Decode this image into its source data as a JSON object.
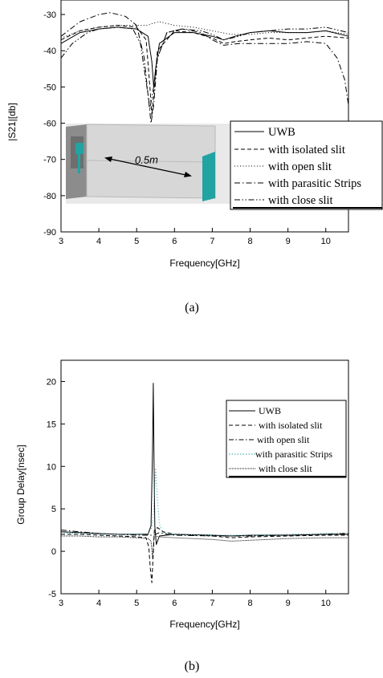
{
  "chart_data": [
    {
      "type": "line",
      "caption": "(a)",
      "xlabel": "Frequency[GHz]",
      "ylabel": "|S21|[db]",
      "xlim": [
        3,
        10.6
      ],
      "ylim": [
        -90,
        -26
      ],
      "xticks": [
        3,
        4,
        5,
        6,
        7,
        8,
        9,
        10
      ],
      "yticks": [
        -90,
        -80,
        -70,
        -60,
        -50,
        -40,
        -30
      ],
      "legend_position": "lower-right",
      "inset": {
        "label": "0.5m",
        "colors": {
          "box": "#d4d4d4",
          "antenna": "#22a3a3",
          "board": "#8c8c8c"
        }
      },
      "series": [
        {
          "name": "UWB",
          "style": "solid",
          "color": "#000000",
          "points": [
            [
              3.0,
              -38
            ],
            [
              3.5,
              -35
            ],
            [
              4.0,
              -34
            ],
            [
              4.5,
              -33.5
            ],
            [
              5.0,
              -34
            ],
            [
              5.3,
              -36
            ],
            [
              5.4,
              -43
            ],
            [
              5.45,
              -50
            ],
            [
              5.5,
              -45
            ],
            [
              5.6,
              -38
            ],
            [
              6.0,
              -35
            ],
            [
              6.5,
              -35
            ],
            [
              7.0,
              -36
            ],
            [
              7.3,
              -37
            ],
            [
              7.6,
              -36
            ],
            [
              8.0,
              -35
            ],
            [
              8.5,
              -34.5
            ],
            [
              9.0,
              -35
            ],
            [
              9.5,
              -35
            ],
            [
              10.0,
              -34.5
            ],
            [
              10.6,
              -36
            ]
          ]
        },
        {
          "name": "with isolated slit",
          "style": "dash",
          "color": "#000000",
          "points": [
            [
              3.0,
              -37
            ],
            [
              3.5,
              -34.5
            ],
            [
              4.0,
              -33.5
            ],
            [
              4.5,
              -33
            ],
            [
              5.0,
              -33.5
            ],
            [
              5.25,
              -37
            ],
            [
              5.35,
              -50
            ],
            [
              5.4,
              -58
            ],
            [
              5.45,
              -52
            ],
            [
              5.55,
              -40
            ],
            [
              6.0,
              -34.5
            ],
            [
              6.5,
              -35
            ],
            [
              7.0,
              -36.5
            ],
            [
              7.3,
              -38
            ],
            [
              7.6,
              -37.5
            ],
            [
              8.0,
              -37
            ],
            [
              8.5,
              -36.5
            ],
            [
              9.0,
              -37
            ],
            [
              9.5,
              -36.5
            ],
            [
              10.0,
              -36
            ],
            [
              10.6,
              -36.5
            ]
          ]
        },
        {
          "name": "with open slit",
          "style": "dot",
          "color": "#000000",
          "points": [
            [
              3.0,
              -36.5
            ],
            [
              3.5,
              -34.5
            ],
            [
              4.0,
              -33.5
            ],
            [
              4.5,
              -33
            ],
            [
              5.0,
              -33
            ],
            [
              5.3,
              -33
            ],
            [
              5.4,
              -32.5
            ],
            [
              5.6,
              -32
            ],
            [
              6.0,
              -33
            ],
            [
              6.5,
              -33.5
            ],
            [
              7.0,
              -34.5
            ],
            [
              7.5,
              -35.5
            ],
            [
              8.0,
              -35.5
            ],
            [
              8.5,
              -35
            ],
            [
              9.0,
              -35
            ],
            [
              9.5,
              -35
            ],
            [
              10.0,
              -34.5
            ],
            [
              10.6,
              -35.5
            ]
          ]
        },
        {
          "name": "with parasitic Strips",
          "style": "dashdot",
          "color": "#000000",
          "points": [
            [
              3.0,
              -36
            ],
            [
              3.5,
              -32
            ],
            [
              4.0,
              -30
            ],
            [
              4.3,
              -29.5
            ],
            [
              4.7,
              -30.5
            ],
            [
              5.0,
              -33
            ],
            [
              5.2,
              -42
            ],
            [
              5.3,
              -52
            ],
            [
              5.38,
              -60
            ],
            [
              5.45,
              -55
            ],
            [
              5.55,
              -42
            ],
            [
              5.8,
              -35
            ],
            [
              6.2,
              -34
            ],
            [
              6.7,
              -35
            ],
            [
              7.0,
              -37
            ],
            [
              7.3,
              -38.5
            ],
            [
              7.7,
              -38
            ],
            [
              8.0,
              -38
            ],
            [
              8.5,
              -38
            ],
            [
              9.0,
              -38
            ],
            [
              9.5,
              -37.5
            ],
            [
              10.0,
              -38
            ],
            [
              10.3,
              -42
            ],
            [
              10.5,
              -48
            ],
            [
              10.6,
              -55
            ]
          ]
        },
        {
          "name": "with close slit",
          "style": "dashdotdot",
          "color": "#000000",
          "points": [
            [
              3.0,
              -42
            ],
            [
              3.3,
              -38
            ],
            [
              3.7,
              -35
            ],
            [
              4.0,
              -34
            ],
            [
              4.5,
              -33.5
            ],
            [
              4.9,
              -34
            ],
            [
              5.1,
              -38
            ],
            [
              5.2,
              -45
            ],
            [
              5.3,
              -52
            ],
            [
              5.35,
              -56
            ],
            [
              5.45,
              -50
            ],
            [
              5.55,
              -42
            ],
            [
              5.8,
              -35
            ],
            [
              6.2,
              -34
            ],
            [
              6.7,
              -34.5
            ],
            [
              7.0,
              -35.5
            ],
            [
              7.3,
              -37
            ],
            [
              7.7,
              -36
            ],
            [
              8.0,
              -35
            ],
            [
              8.5,
              -34.5
            ],
            [
              9.0,
              -34
            ],
            [
              9.5,
              -34
            ],
            [
              10.0,
              -33.5
            ],
            [
              10.6,
              -35
            ]
          ]
        }
      ]
    },
    {
      "type": "line",
      "caption": "(b)",
      "xlabel": "Frequency[GHz]",
      "ylabel": "Group Delay[nsec]",
      "xlim": [
        3,
        10.6
      ],
      "ylim": [
        -5,
        22.5
      ],
      "xticks": [
        3,
        4,
        5,
        6,
        7,
        8,
        9,
        10
      ],
      "yticks": [
        -5,
        0,
        5,
        10,
        15,
        20
      ],
      "legend_position": "top-right",
      "series": [
        {
          "name": "UWB",
          "style": "solid",
          "color": "#000000",
          "points": [
            [
              3.0,
              2.3
            ],
            [
              3.5,
              2.2
            ],
            [
              4.0,
              2.1
            ],
            [
              4.5,
              2.0
            ],
            [
              5.0,
              2.0
            ],
            [
              5.3,
              2.0
            ],
            [
              5.38,
              3.0
            ],
            [
              5.42,
              12.0
            ],
            [
              5.44,
              19.8
            ],
            [
              5.46,
              10.0
            ],
            [
              5.48,
              3.0
            ],
            [
              5.52,
              0.8
            ],
            [
              5.6,
              1.8
            ],
            [
              6.0,
              2.0
            ],
            [
              7.0,
              1.9
            ],
            [
              7.5,
              1.8
            ],
            [
              8.0,
              1.9
            ],
            [
              9.0,
              1.9
            ],
            [
              10.0,
              2.0
            ],
            [
              10.6,
              2.0
            ]
          ]
        },
        {
          "name": "with isolated slit",
          "style": "dash",
          "color": "#000000",
          "points": [
            [
              3.0,
              2.0
            ],
            [
              3.5,
              2.0
            ],
            [
              4.0,
              1.9
            ],
            [
              4.5,
              1.8
            ],
            [
              5.0,
              1.7
            ],
            [
              5.25,
              1.6
            ],
            [
              5.32,
              0.5
            ],
            [
              5.36,
              -2.0
            ],
            [
              5.4,
              -3.7
            ],
            [
              5.43,
              -1.0
            ],
            [
              5.47,
              2.5
            ],
            [
              5.55,
              2.8
            ],
            [
              5.7,
              2.3
            ],
            [
              6.0,
              2.0
            ],
            [
              7.0,
              1.8
            ],
            [
              7.5,
              1.6
            ],
            [
              8.0,
              1.7
            ],
            [
              9.0,
              1.8
            ],
            [
              10.0,
              1.9
            ],
            [
              10.6,
              1.9
            ]
          ]
        },
        {
          "name": "with open slit",
          "style": "dashdot",
          "color": "#000000",
          "points": [
            [
              3.0,
              2.5
            ],
            [
              3.5,
              2.3
            ],
            [
              4.0,
              2.1
            ],
            [
              4.5,
              2.0
            ],
            [
              5.0,
              1.9
            ],
            [
              5.4,
              1.9
            ],
            [
              5.5,
              2.0
            ],
            [
              5.6,
              2.2
            ],
            [
              5.8,
              2.0
            ],
            [
              6.0,
              1.9
            ],
            [
              7.0,
              1.8
            ],
            [
              8.0,
              1.8
            ],
            [
              9.0,
              1.9
            ],
            [
              10.0,
              2.0
            ],
            [
              10.6,
              2.1
            ]
          ]
        },
        {
          "name": "with parasitic Strips",
          "style": "dot",
          "color": "#2aa5a5",
          "points": [
            [
              3.0,
              2.2
            ],
            [
              3.5,
              2.1
            ],
            [
              4.0,
              2.0
            ],
            [
              4.5,
              2.0
            ],
            [
              5.0,
              2.0
            ],
            [
              5.3,
              2.1
            ],
            [
              5.4,
              2.8
            ],
            [
              5.45,
              5.0
            ],
            [
              5.5,
              9.8
            ],
            [
              5.55,
              6.0
            ],
            [
              5.6,
              3.2
            ],
            [
              5.7,
              2.2
            ],
            [
              6.0,
              2.0
            ],
            [
              7.0,
              1.9
            ],
            [
              8.0,
              1.9
            ],
            [
              9.0,
              2.0
            ],
            [
              10.0,
              2.1
            ],
            [
              10.6,
              2.2
            ]
          ]
        },
        {
          "name": "with close slit",
          "style": "densedot",
          "color": "#000000",
          "points": [
            [
              3.0,
              1.8
            ],
            [
              3.5,
              1.8
            ],
            [
              4.0,
              1.7
            ],
            [
              4.5,
              1.7
            ],
            [
              5.0,
              1.6
            ],
            [
              5.3,
              1.5
            ],
            [
              5.38,
              1.2
            ],
            [
              5.42,
              -0.8
            ],
            [
              5.46,
              1.8
            ],
            [
              5.6,
              1.7
            ],
            [
              6.0,
              1.6
            ],
            [
              7.0,
              1.4
            ],
            [
              7.5,
              1.2
            ],
            [
              8.0,
              1.3
            ],
            [
              9.0,
              1.5
            ],
            [
              10.0,
              1.6
            ],
            [
              10.6,
              1.6
            ]
          ]
        }
      ]
    }
  ]
}
